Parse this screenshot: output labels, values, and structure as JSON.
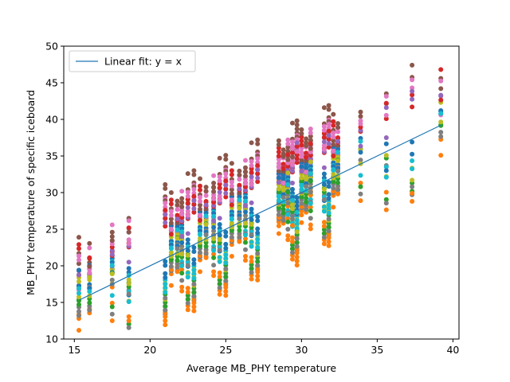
{
  "chart_data": {
    "type": "scatter",
    "title": "",
    "xlabel": "Average MB_PHY temperature",
    "ylabel": "MB_PHY temperature of specific iceboard",
    "xlim": [
      14.3,
      40.4
    ],
    "ylim": [
      10,
      50
    ],
    "x_ticks": [
      15,
      20,
      25,
      30,
      35,
      40
    ],
    "y_ticks": [
      10,
      15,
      20,
      25,
      30,
      35,
      40,
      45,
      50
    ],
    "grid": false,
    "legend_placement": "upper-left",
    "fit_line": {
      "label": "Linear fit: y = x",
      "color": "#1f77b4",
      "x": [
        15.3,
        39.2
      ],
      "y": [
        15.3,
        39.2
      ]
    },
    "sensor_colors": [
      "#1f77b4",
      "#ff7f0e",
      "#2ca02c",
      "#d62728",
      "#9467bd",
      "#8c564b",
      "#e377c2",
      "#7f7f7f",
      "#bcbd22",
      "#17becf"
    ],
    "series_offsets": [
      [
        3.0,
        -2.5,
        0.5,
        6.5,
        4.0,
        7.5,
        5.5,
        -1.0,
        2.0,
        1.5
      ],
      [
        2.0,
        -3.0,
        -0.5,
        4.0,
        3.0,
        5.0,
        2.5,
        -1.5,
        1.0,
        0.5
      ],
      [
        3.5,
        -1.5,
        1.5,
        5.0,
        3.5,
        6.5,
        7.0,
        0.0,
        2.5,
        2.0
      ],
      [
        0.5,
        -5.0,
        -2.0,
        4.5,
        3.0,
        6.0,
        5.5,
        -3.0,
        -0.5,
        -1.0
      ],
      [
        -1.5,
        -8.5,
        -6.0,
        5.5,
        6.0,
        9.0,
        7.0,
        -6.5,
        -4.5,
        -3.5
      ]
    ],
    "point_groups": [
      {
        "x": 15.3,
        "n": 3
      },
      {
        "x": 16.0,
        "n": 3
      },
      {
        "x": 17.5,
        "n": 3
      },
      {
        "x": 18.6,
        "n": 3
      },
      {
        "x": 21.0,
        "n": 4
      },
      {
        "x": 21.4,
        "n": 4
      },
      {
        "x": 21.8,
        "n": 4
      },
      {
        "x": 22.1,
        "n": 4
      },
      {
        "x": 22.5,
        "n": 4
      },
      {
        "x": 22.9,
        "n": 4
      },
      {
        "x": 23.3,
        "n": 4
      },
      {
        "x": 23.7,
        "n": 4
      },
      {
        "x": 24.2,
        "n": 4
      },
      {
        "x": 24.6,
        "n": 4
      },
      {
        "x": 25.0,
        "n": 4
      },
      {
        "x": 25.4,
        "n": 4
      },
      {
        "x": 25.9,
        "n": 4
      },
      {
        "x": 26.3,
        "n": 4
      },
      {
        "x": 26.7,
        "n": 4
      },
      {
        "x": 27.1,
        "n": 4
      },
      {
        "x": 28.5,
        "n": 5
      },
      {
        "x": 28.8,
        "n": 5
      },
      {
        "x": 29.1,
        "n": 5
      },
      {
        "x": 29.4,
        "n": 5
      },
      {
        "x": 29.7,
        "n": 5
      },
      {
        "x": 30.0,
        "n": 5
      },
      {
        "x": 30.3,
        "n": 5
      },
      {
        "x": 30.6,
        "n": 5
      },
      {
        "x": 31.5,
        "n": 4
      },
      {
        "x": 31.8,
        "n": 4
      },
      {
        "x": 32.1,
        "n": 4
      },
      {
        "x": 32.4,
        "n": 4
      },
      {
        "x": 33.9,
        "n": 2
      },
      {
        "x": 35.6,
        "n": 2
      },
      {
        "x": 37.3,
        "n": 2
      },
      {
        "x": 39.2,
        "n": 2
      }
    ]
  }
}
